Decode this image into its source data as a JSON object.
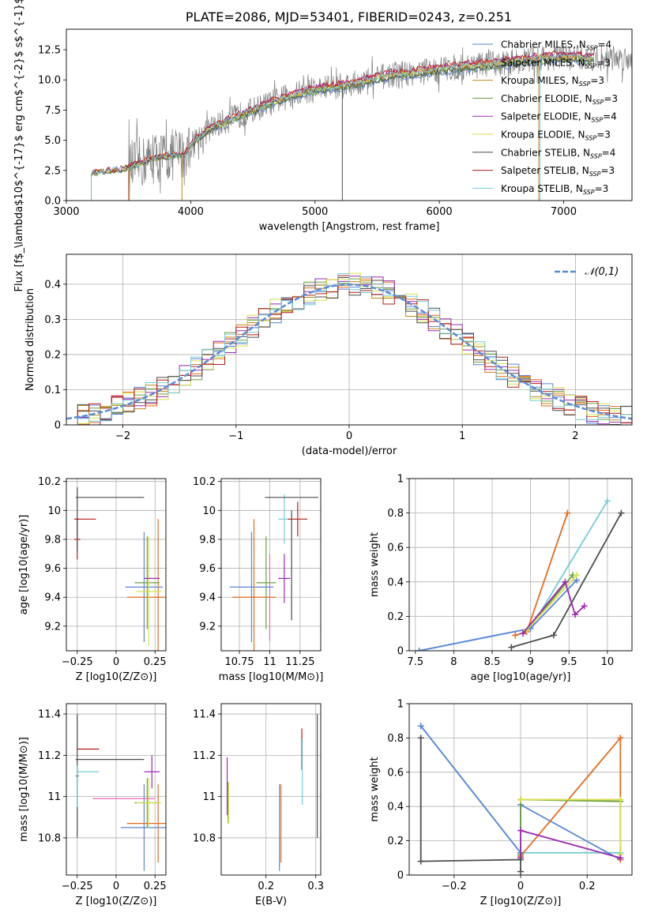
{
  "figure": {
    "title": "PLATE=2086, MJD=53401, FIBERID=0243, z=0.251"
  },
  "colors": {
    "chabrier_miles": "#5b84d6",
    "salpeter_miles": "#e46c1f",
    "kroupa_miles": "#c08a1f",
    "chabrier_elodie": "#6a9e3e",
    "salpeter_elodie": "#9b2bb0",
    "kroupa_elodie": "#d7e04b",
    "chabrier_stelib": "#4d4d4d",
    "salpeter_stelib": "#b51c1c",
    "kroupa_stelib": "#77ccd6",
    "pink": "#e46ab7",
    "grid": "#b0b0b0",
    "normal": "#5b8bd6"
  },
  "chart_data": [
    {
      "id": "spectrum",
      "type": "line",
      "xlabel": "wavelength [Angstrom, rest frame]",
      "ylabel": "Flux [f$_\\lambda$10$^{-17}$ erg cm$^{-2}$ s$^{-1}$ A$^{-1}$]",
      "xlim": [
        3000,
        7550
      ],
      "ylim": [
        0,
        14.2
      ],
      "xticks": [
        3000,
        4000,
        5000,
        6000,
        7000
      ],
      "yticks": [
        0.0,
        2.5,
        5.0,
        7.5,
        10.0,
        12.5
      ],
      "legend": [
        {
          "label": "Chabrier MILES, N",
          "sub": "SSP",
          "tail": "=4",
          "color": "#5b84d6"
        },
        {
          "label": "Salpeter MILES, N",
          "sub": "SSP",
          "tail": "=3",
          "color": "#e46c1f"
        },
        {
          "label": "Kroupa MILES, N",
          "sub": "SSP",
          "tail": "=3",
          "color": "#c08a1f"
        },
        {
          "label": "Chabrier ELODIE, N",
          "sub": "SSP",
          "tail": "=3",
          "color": "#6a9e3e"
        },
        {
          "label": "Salpeter ELODIE, N",
          "sub": "SSP",
          "tail": "=4",
          "color": "#9b2bb0"
        },
        {
          "label": "Kroupa ELODIE, N",
          "sub": "SSP",
          "tail": "=3",
          "color": "#d7e04b"
        },
        {
          "label": "Chabrier STELIB, N",
          "sub": "SSP",
          "tail": "=4",
          "color": "#4d4d4d"
        },
        {
          "label": "Salpeter STELIB, N",
          "sub": "SSP",
          "tail": "=3",
          "color": "#b51c1c"
        },
        {
          "label": "Kroupa STELIB, N",
          "sub": "SSP",
          "tail": "=3",
          "color": "#77ccd6"
        }
      ],
      "model_shape": [
        [
          3200,
          2.3
        ],
        [
          3450,
          2.6
        ],
        [
          3700,
          3.5
        ],
        [
          3950,
          3.9
        ],
        [
          4050,
          5.2
        ],
        [
          4200,
          6.2
        ],
        [
          4400,
          7.1
        ],
        [
          4600,
          7.9
        ],
        [
          4800,
          8.7
        ],
        [
          5000,
          9.2
        ],
        [
          5200,
          9.5
        ],
        [
          5400,
          9.9
        ],
        [
          5600,
          10.4
        ],
        [
          5800,
          10.6
        ],
        [
          6000,
          10.9
        ],
        [
          6200,
          11.1
        ],
        [
          6400,
          11.3
        ],
        [
          6600,
          11.5
        ],
        [
          6800,
          11.8
        ],
        [
          7000,
          11.9
        ],
        [
          7250,
          11.8
        ]
      ],
      "data_range": [
        3500,
        7550
      ]
    },
    {
      "id": "residuals",
      "type": "step",
      "xlabel": "(data-model)/error",
      "ylabel": "Normed distribution",
      "xlim": [
        -2.5,
        2.5
      ],
      "ylim": [
        0,
        0.485
      ],
      "xticks": [
        -2,
        -1,
        0,
        1,
        2
      ],
      "yticks": [
        0.0,
        0.1,
        0.2,
        0.3,
        0.4
      ],
      "bin_width": 0.1,
      "legend_label": "𝒩(0,1)"
    },
    {
      "id": "age_vs_Z",
      "type": "errorbar",
      "xlabel": "Z [log10(Z/Z⊙)]",
      "ylabel": "age  [log10(age/yr)]",
      "xlim": [
        -0.32,
        0.32
      ],
      "ylim": [
        9.03,
        10.22
      ],
      "xticks": [
        -0.25,
        0.0,
        0.25
      ],
      "yticks": [
        9.2,
        9.4,
        9.6,
        9.8,
        10.0,
        10.2
      ],
      "points": [
        {
          "x": -0.25,
          "y": 9.8,
          "xerr": 0.02,
          "yerr": 0.14,
          "color": "#b51c1c"
        },
        {
          "x": -0.25,
          "y": 9.94,
          "xerr": 0.01,
          "yerr": 0.22,
          "color": "#4d4d4d"
        },
        {
          "x": -0.04,
          "y": 10.09,
          "xerr": 0.22,
          "yerr": 0.0,
          "color": "#4d4d4d"
        },
        {
          "x": -0.2,
          "y": 9.94,
          "xerr": 0.07,
          "yerr": 0.0,
          "color": "#b51c1c"
        },
        {
          "x": 0.18,
          "y": 9.47,
          "xerr": 0.12,
          "yerr": 0.38,
          "color": "#5b84d6"
        },
        {
          "x": 0.27,
          "y": 9.4,
          "xerr": 0.2,
          "yerr": 0.54,
          "color": "#e46c1f"
        },
        {
          "x": 0.2,
          "y": 9.5,
          "xerr": 0.08,
          "yerr": 0.32,
          "color": "#6a9e3e"
        },
        {
          "x": 0.21,
          "y": 9.44,
          "xerr": 0.08,
          "yerr": 0.38,
          "color": "#d7e04b"
        },
        {
          "x": 0.23,
          "y": 9.53,
          "xerr": 0.05,
          "yerr": 0.0,
          "color": "#9b2bb0"
        }
      ]
    },
    {
      "id": "age_vs_mass",
      "type": "errorbar",
      "xlabel": "mass [log10(M/M⊙)]",
      "ylabel": "",
      "xlim": [
        10.6,
        11.42
      ],
      "ylim": [
        9.03,
        10.22
      ],
      "xticks": [
        10.75,
        11.0,
        11.25
      ],
      "yticks": [
        9.2,
        9.4,
        9.6,
        9.8,
        10.0,
        10.2
      ],
      "points": [
        {
          "x": 10.85,
          "y": 9.47,
          "xerr": 0.18,
          "yerr": 0.38,
          "color": "#5b84d6"
        },
        {
          "x": 10.87,
          "y": 9.4,
          "xerr": 0.18,
          "yerr": 0.54,
          "color": "#e46c1f"
        },
        {
          "x": 10.97,
          "y": 9.5,
          "xerr": 0.08,
          "yerr": 0.32,
          "color": "#6a9e3e"
        },
        {
          "x": 11.0,
          "y": 9.4,
          "xerr": 0.0,
          "yerr": 0.3,
          "color": "#e46ab7"
        },
        {
          "x": 11.12,
          "y": 9.53,
          "xerr": 0.05,
          "yerr": 0.17,
          "color": "#9b2bb0"
        },
        {
          "x": 11.12,
          "y": 9.94,
          "xerr": 0.05,
          "yerr": 0.17,
          "color": "#77ccd6"
        },
        {
          "x": 11.18,
          "y": 9.62,
          "xerr": 0.0,
          "yerr": 0.38,
          "color": "#4d4d4d"
        },
        {
          "x": 11.23,
          "y": 9.94,
          "xerr": 0.08,
          "yerr": 0.12,
          "color": "#b51c1c"
        },
        {
          "x": 11.18,
          "y": 10.09,
          "xerr": 0.22,
          "yerr": 0.0,
          "color": "#4d4d4d"
        }
      ]
    },
    {
      "id": "massweight_vs_age",
      "type": "line",
      "xlabel": "age  [log10(age/yr)]",
      "ylabel": "mass weight",
      "xlim": [
        7.42,
        10.32
      ],
      "ylim": [
        0,
        1.0
      ],
      "xticks": [
        7.5,
        8.0,
        8.5,
        9.0,
        9.5,
        10.0
      ],
      "yticks": [
        0.0,
        0.2,
        0.4,
        0.6,
        0.8,
        1.0
      ],
      "series": [
        {
          "color": "#77ccd6",
          "points": [
            [
              7.55,
              0.0
            ],
            [
              9.0,
              0.13
            ],
            [
              10.0,
              0.87
            ]
          ]
        },
        {
          "color": "#5b84d6",
          "points": [
            [
              7.55,
              0.0
            ],
            [
              9.0,
              0.13
            ],
            [
              9.6,
              0.41
            ]
          ]
        },
        {
          "color": "#e46c1f",
          "points": [
            [
              8.8,
              0.09
            ],
            [
              8.95,
              0.11
            ],
            [
              9.48,
              0.8
            ]
          ]
        },
        {
          "color": "#6a9e3e",
          "points": [
            [
              8.95,
              0.12
            ],
            [
              9.55,
              0.44
            ]
          ]
        },
        {
          "color": "#d7e04b",
          "points": [
            [
              8.95,
              0.12
            ],
            [
              9.6,
              0.44
            ]
          ]
        },
        {
          "color": "#9b2bb0",
          "points": [
            [
              8.9,
              0.1
            ],
            [
              9.45,
              0.4
            ],
            [
              9.58,
              0.21
            ],
            [
              9.7,
              0.26
            ]
          ]
        },
        {
          "color": "#4d4d4d",
          "points": [
            [
              8.75,
              0.02
            ],
            [
              9.3,
              0.09
            ],
            [
              10.18,
              0.8
            ]
          ]
        }
      ]
    },
    {
      "id": "mass_vs_Z",
      "type": "errorbar",
      "xlabel": "Z [log10(Z/Z⊙)]",
      "ylabel": "mass [log10(M/M⊙)]",
      "xlim": [
        -0.32,
        0.32
      ],
      "ylim": [
        10.62,
        11.45
      ],
      "xticks": [
        -0.25,
        0.0,
        0.25
      ],
      "yticks": [
        10.8,
        11.0,
        11.2,
        11.4
      ],
      "points": [
        {
          "x": -0.25,
          "y": 11.1,
          "xerr": 0.01,
          "yerr": 0.3,
          "color": "#4d4d4d"
        },
        {
          "x": -0.18,
          "y": 11.23,
          "xerr": 0.07,
          "yerr": 0.0,
          "color": "#b51c1c"
        },
        {
          "x": -0.04,
          "y": 11.18,
          "xerr": 0.22,
          "yerr": 0.0,
          "color": "#4d4d4d"
        },
        {
          "x": -0.18,
          "y": 11.12,
          "xerr": 0.07,
          "yerr": 0.0,
          "color": "#77ccd6"
        },
        {
          "x": -0.25,
          "y": 11.05,
          "xerr": 0.0,
          "yerr": 0.1,
          "color": "#77ccd6"
        },
        {
          "x": 0.18,
          "y": 10.85,
          "xerr": 0.15,
          "yerr": 0.21,
          "color": "#5b84d6"
        },
        {
          "x": 0.27,
          "y": 10.87,
          "xerr": 0.2,
          "yerr": 0.19,
          "color": "#e46c1f"
        },
        {
          "x": 0.2,
          "y": 10.97,
          "xerr": 0.08,
          "yerr": 0.12,
          "color": "#6a9e3e"
        },
        {
          "x": 0.21,
          "y": 10.97,
          "xerr": 0.08,
          "yerr": 0.12,
          "color": "#d7e04b"
        },
        {
          "x": 0.23,
          "y": 11.12,
          "xerr": 0.05,
          "yerr": 0.08,
          "color": "#9b2bb0"
        },
        {
          "x": 0.05,
          "y": 10.99,
          "xerr": 0.2,
          "yerr": 0.0,
          "color": "#e46ab7"
        }
      ]
    },
    {
      "id": "mass_vs_ebv",
      "type": "errorbar",
      "xlabel": "E(B-V)",
      "ylabel": "",
      "xlim": [
        0.11,
        0.31
      ],
      "ylim": [
        10.62,
        11.45
      ],
      "xticks": [
        0.2,
        0.3
      ],
      "yticks": [
        10.8,
        11.0,
        11.2,
        11.4
      ],
      "points": [
        {
          "x": 0.122,
          "y": 11.05,
          "xerr": 0,
          "yerr": 0.14,
          "color": "#9b2bb0"
        },
        {
          "x": 0.124,
          "y": 10.97,
          "xerr": 0,
          "yerr": 0.1,
          "color": "#6a9e3e"
        },
        {
          "x": 0.125,
          "y": 10.97,
          "xerr": 0,
          "yerr": 0.1,
          "color": "#d7e04b"
        },
        {
          "x": 0.227,
          "y": 10.85,
          "xerr": 0,
          "yerr": 0.21,
          "color": "#5b84d6"
        },
        {
          "x": 0.23,
          "y": 10.87,
          "xerr": 0,
          "yerr": 0.19,
          "color": "#e46c1f"
        },
        {
          "x": 0.272,
          "y": 11.23,
          "xerr": 0,
          "yerr": 0.1,
          "color": "#b51c1c"
        },
        {
          "x": 0.273,
          "y": 11.12,
          "xerr": 0,
          "yerr": 0.16,
          "color": "#77ccd6"
        },
        {
          "x": 0.303,
          "y": 11.1,
          "xerr": 0,
          "yerr": 0.3,
          "color": "#4d4d4d"
        }
      ]
    },
    {
      "id": "massweight_vs_Z",
      "type": "line",
      "xlabel": "Z [log10(Z/Z⊙)]",
      "ylabel": "mass weight",
      "xlim": [
        -0.335,
        0.335
      ],
      "ylim": [
        0,
        1.0
      ],
      "xticks": [
        -0.2,
        0.0,
        0.2
      ],
      "yticks": [
        0.0,
        0.2,
        0.4,
        0.6,
        0.8,
        1.0
      ],
      "series": [
        {
          "color": "#77ccd6",
          "points": [
            [
              -0.3,
              0.87
            ],
            [
              0.0,
              0.13
            ],
            [
              0.3,
              0.13
            ]
          ]
        },
        {
          "color": "#5b84d6",
          "points": [
            [
              -0.3,
              0.87
            ],
            [
              0.0,
              0.13
            ],
            [
              0.0,
              0.41
            ],
            [
              0.3,
              0.09
            ]
          ]
        },
        {
          "color": "#e46c1f",
          "points": [
            [
              0.0,
              0.11
            ],
            [
              0.3,
              0.8
            ],
            [
              0.3,
              0.09
            ]
          ]
        },
        {
          "color": "#6a9e3e",
          "points": [
            [
              0.0,
              0.12
            ],
            [
              0.0,
              0.44
            ],
            [
              0.3,
              0.43
            ]
          ]
        },
        {
          "color": "#d7e04b",
          "points": [
            [
              0.0,
              0.44
            ],
            [
              0.3,
              0.44
            ],
            [
              0.3,
              0.12
            ]
          ]
        },
        {
          "color": "#9b2bb0",
          "points": [
            [
              0.0,
              0.1
            ],
            [
              0.0,
              0.26
            ],
            [
              0.3,
              0.1
            ]
          ]
        },
        {
          "color": "#4d4d4d",
          "points": [
            [
              -0.3,
              0.8
            ],
            [
              -0.3,
              0.08
            ],
            [
              0.0,
              0.09
            ],
            [
              0.0,
              0.02
            ]
          ]
        }
      ]
    }
  ]
}
